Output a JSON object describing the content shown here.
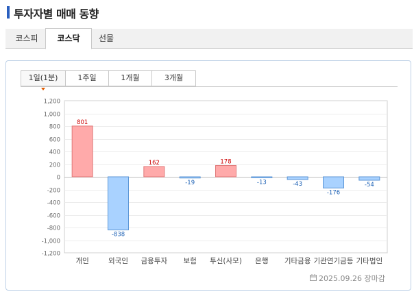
{
  "title": "투자자별 매매 동향",
  "market_tabs": [
    {
      "label": "코스피",
      "active": false
    },
    {
      "label": "코스닥",
      "active": true
    },
    {
      "label": "선물",
      "active": false
    }
  ],
  "period_tabs": [
    {
      "label": "1일(1분)",
      "active": true
    },
    {
      "label": "1주일",
      "active": false
    },
    {
      "label": "1개월",
      "active": false
    },
    {
      "label": "3개월",
      "active": false
    }
  ],
  "footer": {
    "date": "2025.09.26",
    "status": "장마감"
  },
  "colors": {
    "positive": "#ffaaaa",
    "negative": "#a9d2ff",
    "positive_label": "#cc0000",
    "negative_label": "#1a5fb4"
  },
  "chart_data": {
    "type": "bar",
    "categories": [
      "개인",
      "외국인",
      "금융투자",
      "보험",
      "투신(사모)",
      "은행",
      "기타금융",
      "기관연기금등",
      "기타법인"
    ],
    "values": [
      801,
      -838,
      162,
      -19,
      178,
      -13,
      -43,
      -176,
      -54
    ],
    "value_labels": [
      "801",
      "-838",
      "162",
      "-19",
      "178",
      "-13",
      "-43",
      "-176",
      "-54"
    ],
    "ylim": [
      -1200,
      1200
    ],
    "yticks": [
      1200,
      1000,
      800,
      600,
      400,
      200,
      0,
      -200,
      -400,
      -600,
      -800,
      -1000,
      -1200
    ],
    "ytick_labels": [
      "1,200",
      "1,000",
      "800",
      "600",
      "400",
      "200",
      "0",
      "-200",
      "-400",
      "-600",
      "-800",
      "-1,000",
      "-1,200"
    ],
    "grid": true
  }
}
